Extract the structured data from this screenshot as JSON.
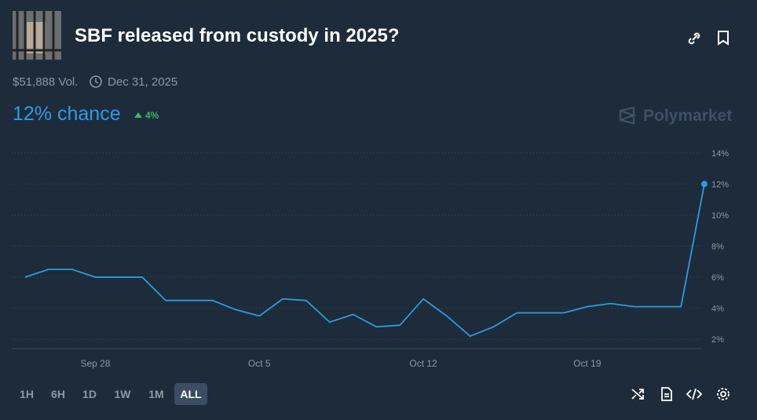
{
  "header": {
    "title": "SBF released from custody in 2025?",
    "volume": "$51,888 Vol.",
    "end_date": "Dec 31, 2025",
    "chance": "12% chance",
    "change": "4%",
    "brand": "Polymarket"
  },
  "range_buttons": [
    "1H",
    "6H",
    "1D",
    "1W",
    "1M",
    "ALL"
  ],
  "chart_data": {
    "type": "line",
    "x": [
      "Sep 25",
      "Sep 26",
      "Sep 27",
      "Sep 28",
      "Sep 29",
      "Sep 30",
      "Oct 1",
      "Oct 2",
      "Oct 3",
      "Oct 4",
      "Oct 5",
      "Oct 6",
      "Oct 7",
      "Oct 8",
      "Oct 9",
      "Oct 10",
      "Oct 11",
      "Oct 12",
      "Oct 13",
      "Oct 14",
      "Oct 15",
      "Oct 16",
      "Oct 17",
      "Oct 18",
      "Oct 19",
      "Oct 20",
      "Oct 21",
      "Oct 22",
      "Oct 23",
      "Oct 24"
    ],
    "values": [
      6.0,
      6.5,
      6.5,
      6.0,
      6.0,
      6.0,
      4.5,
      4.5,
      4.5,
      3.9,
      3.5,
      4.6,
      4.5,
      3.1,
      3.6,
      2.8,
      2.9,
      4.6,
      3.5,
      2.2,
      2.8,
      3.7,
      3.7,
      3.7,
      4.1,
      4.3,
      4.1,
      4.1,
      4.1,
      12
    ],
    "color": "#2d9cdb",
    "xticks": [
      "Sep 28",
      "Oct 5",
      "Oct 12",
      "Oct 19"
    ],
    "ylim": [
      1.5,
      14.5
    ],
    "yticks": [
      {
        "value": 2,
        "label": "2%"
      },
      {
        "value": 4,
        "label": "4%"
      },
      {
        "value": 6,
        "label": "6%"
      },
      {
        "value": 8,
        "label": "8%"
      },
      {
        "value": 10,
        "label": "10%"
      },
      {
        "value": 12,
        "label": "12%"
      },
      {
        "value": 14,
        "label": "14%"
      }
    ],
    "grid": true
  }
}
